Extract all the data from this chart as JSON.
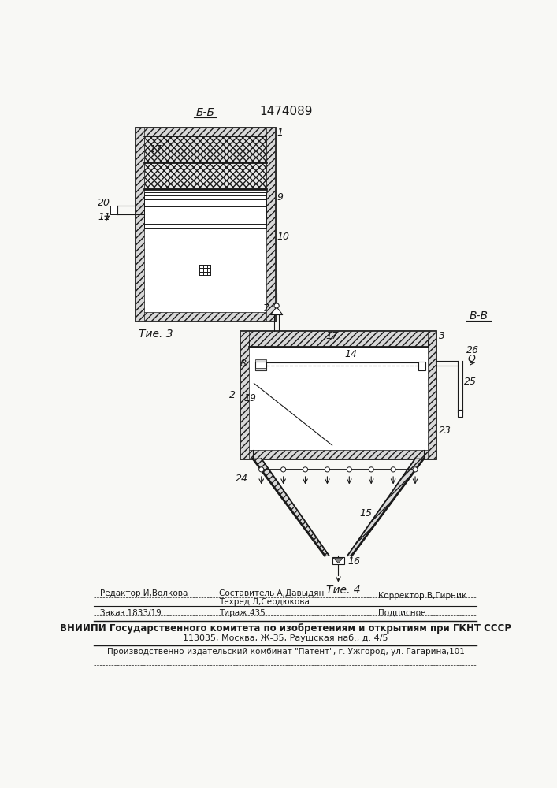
{
  "patent_number": "1474089",
  "background_color": "#f8f8f5",
  "line_color": "#1a1a1a",
  "fig3_label": "Τие. 3",
  "fig4_label": "Τие. 4",
  "section_bb": "Б-Б",
  "section_vv": "В-В",
  "footer": {
    "editor_label": "Редактор И,Волкова",
    "composer_label": "Составитель А,Давыдян",
    "techred_label": "Техред Л,Сердюкова",
    "corrector_label": "Корректор В,Гирник",
    "order_label": "Заказ 1833/19",
    "tirazh_label": "Тираж 435",
    "podpisnoe_label": "Подписное",
    "vniiipi_line1": "ВНИИПИ Государственного комитета по изобретениям и открытиям при ГКНТ СССР",
    "vniiipi_line2": "113035, Москва, Ж-35, Раушская наб., д. 4/5",
    "proizv_line": "Производственно-издательский комбинат \"Патент\", г. Ужгород, ул. Гагарина,101"
  }
}
